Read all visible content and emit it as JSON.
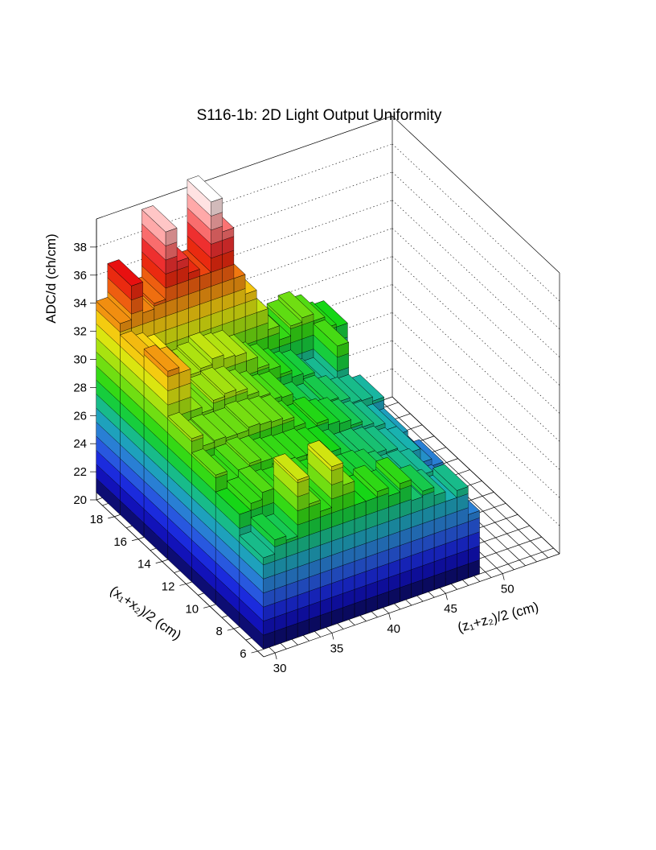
{
  "chart_data": {
    "type": "lego3d",
    "title": "S116-1b: 2D Light Output Uniformity",
    "xlabel": "(z₁+z₂)/2 (cm)",
    "ylabel": "(x₁+x₂)/2 (cm)",
    "zlabel": "ADC/d (ch/cm)",
    "xlim": [
      29,
      55
    ],
    "ylim": [
      5.5,
      19.5
    ],
    "zlim": [
      20,
      40
    ],
    "x_ticks": [
      30,
      35,
      40,
      45,
      50
    ],
    "y_ticks": [
      6,
      8,
      10,
      12,
      14,
      16,
      18
    ],
    "z_ticks": [
      20,
      22,
      24,
      26,
      28,
      30,
      32,
      34,
      36,
      38
    ],
    "grid": true,
    "color_scale": [
      "#0a0a50",
      "#1414dc",
      "#2e6ee0",
      "#19b2b0",
      "#16d616",
      "#8ee010",
      "#f5e610",
      "#f07810",
      "#e81010",
      "#ff8c8c",
      "#ffffff"
    ],
    "bins": {
      "x": [
        30,
        31,
        32,
        33,
        34,
        35,
        36,
        37,
        38,
        39,
        40,
        41,
        42,
        43,
        44,
        45,
        46,
        47,
        48,
        49,
        50
      ],
      "y": [
        7,
        9,
        11,
        13,
        15,
        17,
        19
      ],
      "values": [
        [
          26.5,
          27.5,
          27.2,
          31.2,
          29.2,
          28.4,
          31.3,
          29.7,
          28.0,
          28.0,
          28.4,
          27.8,
          28.4,
          26.9,
          27.3,
          26.7,
          26.0,
          26.5,
          24.5,
          0,
          0
        ],
        [
          28.0,
          28.5,
          29.0,
          28.5,
          28.4,
          28.6,
          28.5,
          28.1,
          28.4,
          28.0,
          27.6,
          27.6,
          27.4,
          27.0,
          26.5,
          26.5,
          26.3,
          25.2,
          24.6,
          23.5,
          0
        ],
        [
          29.2,
          28.5,
          29.0,
          29.2,
          29.0,
          28.6,
          28.5,
          28.4,
          28.4,
          28.2,
          28.0,
          27.5,
          27.0,
          27.0,
          26.8,
          26.6,
          26.2,
          26.0,
          25.0,
          24.5,
          0
        ],
        [
          30.2,
          29.4,
          29.5,
          29.4,
          29.4,
          29.6,
          29.5,
          29.4,
          29.2,
          28.5,
          28.0,
          28.2,
          27.8,
          27.6,
          27.2,
          26.8,
          26.5,
          26.0,
          25.4,
          24.0,
          0
        ],
        [
          33.4,
          33.0,
          30.0,
          29.6,
          30.2,
          30.4,
          30.2,
          29.7,
          29.3,
          28.8,
          28.7,
          27.5,
          27.4,
          27.0,
          27.3,
          27.0,
          26.6,
          26.5,
          26.2,
          0,
          0
        ],
        [
          32.8,
          32.4,
          32.0,
          30.4,
          30.4,
          30.6,
          31.0,
          30.7,
          30.6,
          30.0,
          29.2,
          28.8,
          28.2,
          27.7,
          27.5,
          26.6,
          26.4,
          28.8,
          0,
          0,
          0
        ],
        [
          33.6,
          36.0,
          33.8,
          34.2,
          39.0,
          36.6,
          35.5,
          35.0,
          40.0,
          37.6,
          34.0,
          32.6,
          31.0,
          29.5,
          28.5,
          29.2,
          29.5,
          29.0,
          28.2,
          28.0,
          0
        ]
      ]
    }
  }
}
